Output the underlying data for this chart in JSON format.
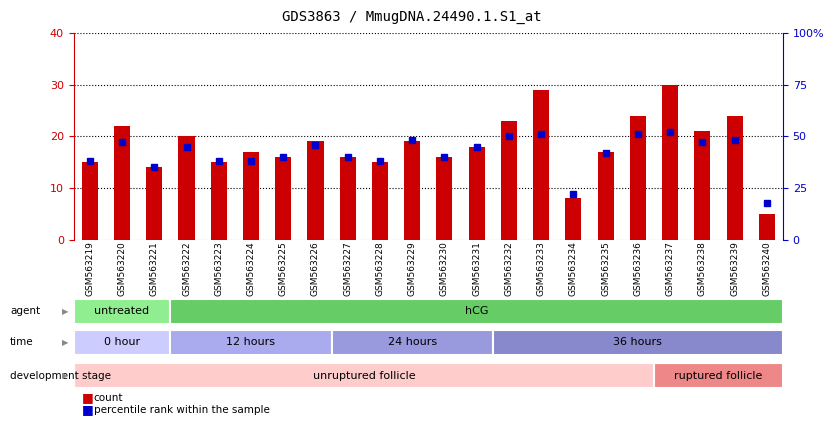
{
  "title": "GDS3863 / MmugDNA.24490.1.S1_at",
  "samples": [
    "GSM563219",
    "GSM563220",
    "GSM563221",
    "GSM563222",
    "GSM563223",
    "GSM563224",
    "GSM563225",
    "GSM563226",
    "GSM563227",
    "GSM563228",
    "GSM563229",
    "GSM563230",
    "GSM563231",
    "GSM563232",
    "GSM563233",
    "GSM563234",
    "GSM563235",
    "GSM563236",
    "GSM563237",
    "GSM563238",
    "GSM563239",
    "GSM563240"
  ],
  "counts": [
    15,
    22,
    14,
    20,
    15,
    17,
    16,
    19,
    16,
    15,
    19,
    16,
    18,
    23,
    29,
    8,
    17,
    24,
    30,
    21,
    24,
    5
  ],
  "percentiles": [
    38,
    47,
    35,
    45,
    38,
    38,
    40,
    46,
    40,
    38,
    48,
    40,
    45,
    50,
    51,
    22,
    42,
    51,
    52,
    47,
    48,
    18
  ],
  "ylim_left": [
    0,
    40
  ],
  "ylim_right": [
    0,
    100
  ],
  "yticks_left": [
    0,
    10,
    20,
    30,
    40
  ],
  "yticks_right": [
    0,
    25,
    50,
    75,
    100
  ],
  "ytick_labels_right": [
    "0",
    "25",
    "50",
    "75",
    "100%"
  ],
  "bar_color": "#cc0000",
  "blue_color": "#0000cc",
  "background_color": "#ffffff",
  "agent_groups": [
    {
      "label": "untreated",
      "start": 0,
      "end": 3,
      "color": "#90ee90"
    },
    {
      "label": "hCG",
      "start": 3,
      "end": 22,
      "color": "#66cc66"
    }
  ],
  "time_groups": [
    {
      "label": "0 hour",
      "start": 0,
      "end": 3,
      "color": "#ccccff"
    },
    {
      "label": "12 hours",
      "start": 3,
      "end": 8,
      "color": "#aaaaee"
    },
    {
      "label": "24 hours",
      "start": 8,
      "end": 13,
      "color": "#9999dd"
    },
    {
      "label": "36 hours",
      "start": 13,
      "end": 22,
      "color": "#8888cc"
    }
  ],
  "dev_groups": [
    {
      "label": "unruptured follicle",
      "start": 0,
      "end": 18,
      "color": "#ffcccc"
    },
    {
      "label": "ruptured follicle",
      "start": 18,
      "end": 22,
      "color": "#ee8888"
    }
  ],
  "row_labels": [
    "agent",
    "time",
    "development stage"
  ],
  "legend_count": "count",
  "legend_pct": "percentile rank within the sample"
}
